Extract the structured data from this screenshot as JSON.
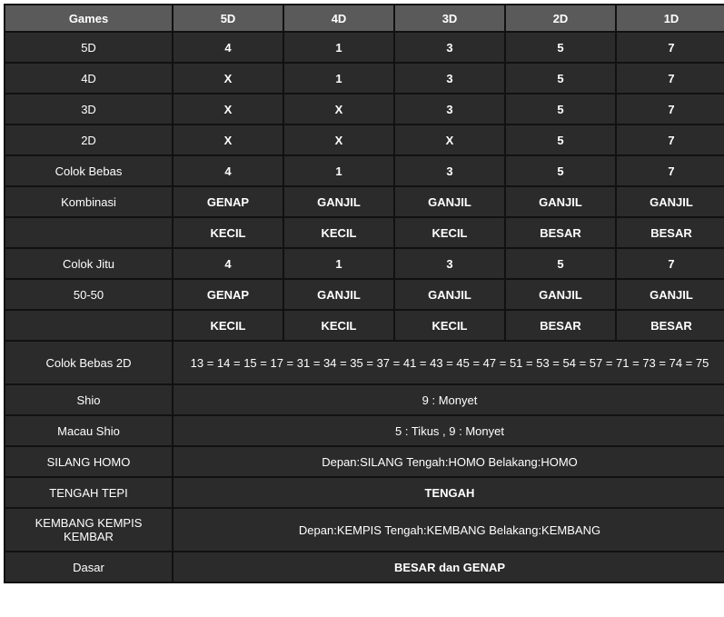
{
  "table": {
    "headers": [
      "Games",
      "5D",
      "4D",
      "3D",
      "2D",
      "1D"
    ],
    "rows": [
      {
        "label": "5D",
        "cells": [
          "4",
          "1",
          "3",
          "5",
          "7"
        ]
      },
      {
        "label": "4D",
        "cells": [
          "X",
          "1",
          "3",
          "5",
          "7"
        ]
      },
      {
        "label": "3D",
        "cells": [
          "X",
          "X",
          "3",
          "5",
          "7"
        ]
      },
      {
        "label": "2D",
        "cells": [
          "X",
          "X",
          "X",
          "5",
          "7"
        ]
      },
      {
        "label": "Colok Bebas",
        "cells": [
          "4",
          "1",
          "3",
          "5",
          "7"
        ]
      },
      {
        "label": "Kombinasi",
        "cells": [
          "GENAP",
          "GANJIL",
          "GANJIL",
          "GANJIL",
          "GANJIL"
        ]
      },
      {
        "label": "",
        "cells": [
          "KECIL",
          "KECIL",
          "KECIL",
          "BESAR",
          "BESAR"
        ]
      },
      {
        "label": "Colok Jitu",
        "cells": [
          "4",
          "1",
          "3",
          "5",
          "7"
        ]
      },
      {
        "label": "50-50",
        "cells": [
          "GENAP",
          "GANJIL",
          "GANJIL",
          "GANJIL",
          "GANJIL"
        ]
      },
      {
        "label": "",
        "cells": [
          "KECIL",
          "KECIL",
          "KECIL",
          "BESAR",
          "BESAR"
        ]
      }
    ],
    "span_rows": [
      {
        "label": "Colok Bebas 2D",
        "value": "13 = 14 = 15 = 17 = 31 = 34 = 35 = 37 = 41 = 43 = 45 = 47 = 51 = 53 = 54 = 57 = 71 = 73 = 74 = 75",
        "bold": false,
        "tall": true
      },
      {
        "label": "Shio",
        "value": "9 : Monyet",
        "bold": false
      },
      {
        "label": "Macau Shio",
        "value": "5 : Tikus , 9 : Monyet",
        "bold": false
      },
      {
        "label": "SILANG HOMO",
        "value": "Depan:SILANG Tengah:HOMO Belakang:HOMO",
        "bold": false
      },
      {
        "label": "TENGAH TEPI",
        "value": "TENGAH",
        "bold": true
      },
      {
        "label": "KEMBANG KEMPIS KEMBAR",
        "value": "Depan:KEMPIS Tengah:KEMBANG Belakang:KEMBANG",
        "bold": false,
        "tall": true
      },
      {
        "label": "Dasar",
        "value": "BESAR dan GENAP",
        "bold": true
      }
    ]
  },
  "colors": {
    "header_bg": "#5a5a5a",
    "cell_bg": "#2b2b2b",
    "border_gap": "#111111",
    "text": "#ffffff"
  }
}
